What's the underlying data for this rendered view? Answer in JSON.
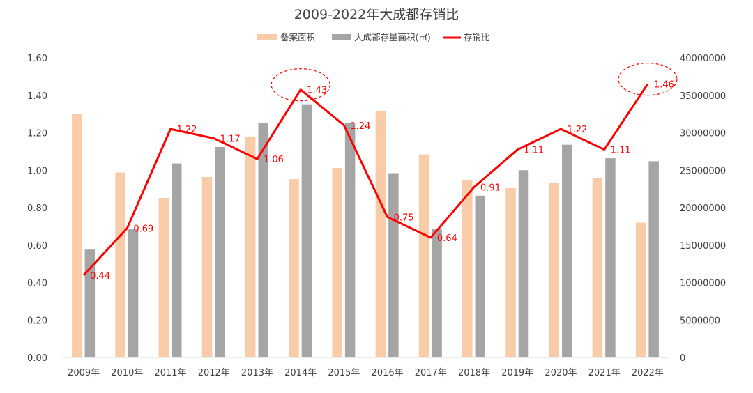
{
  "chart_data": {
    "type": "bar+line",
    "title": "2009-2022年大成都存销比",
    "legend": {
      "position": "top-center",
      "items": [
        {
          "name": "备案面积",
          "kind": "bar",
          "color": "#f8cba9"
        },
        {
          "name": "大成都存量面积(㎡)",
          "kind": "bar",
          "color": "#a5a5a5"
        },
        {
          "name": "存销比",
          "kind": "line",
          "color": "#ff0000"
        }
      ]
    },
    "categories": [
      "2009年",
      "2010年",
      "2011年",
      "2012年",
      "2013年",
      "2014年",
      "2015年",
      "2016年",
      "2017年",
      "2018年",
      "2019年",
      "2020年",
      "2021年",
      "2022年"
    ],
    "series": [
      {
        "name": "备案面积",
        "type": "bar",
        "axis": "right",
        "color": "#f8cba9",
        "values": [
          32500000,
          24700000,
          21300000,
          24100000,
          29500000,
          23800000,
          25300000,
          32900000,
          27100000,
          23700000,
          22600000,
          23300000,
          24000000,
          18000000
        ]
      },
      {
        "name": "大成都存量面积(㎡)",
        "type": "bar",
        "axis": "right",
        "color": "#a5a5a5",
        "values": [
          14400000,
          17100000,
          25900000,
          28100000,
          31300000,
          33800000,
          31300000,
          24600000,
          17200000,
          21600000,
          25000000,
          28400000,
          26600000,
          26200000
        ]
      },
      {
        "name": "存销比",
        "type": "line",
        "axis": "left",
        "color": "#ff0000",
        "values": [
          0.44,
          0.69,
          1.22,
          1.17,
          1.06,
          1.43,
          1.24,
          0.75,
          0.64,
          0.91,
          1.11,
          1.22,
          1.11,
          1.46
        ],
        "labels": [
          "0.44",
          "0.69",
          "1.22",
          "1.17",
          "1.06",
          "1.43",
          "1.24",
          "0.75",
          "0.64",
          "0.91",
          "1.11",
          "1.22",
          "1.11",
          "1.46"
        ]
      }
    ],
    "y_left": {
      "min": 0,
      "max": 1.6,
      "step": 0.2,
      "ticks": [
        "0.00",
        "0.20",
        "0.40",
        "0.60",
        "0.80",
        "1.00",
        "1.20",
        "1.40",
        "1.60"
      ]
    },
    "y_right": {
      "min": 0,
      "max": 40000000,
      "step": 5000000,
      "ticks": [
        "0",
        "5000000",
        "10000000",
        "15000000",
        "20000000",
        "25000000",
        "30000000",
        "35000000",
        "40000000"
      ]
    },
    "highlights": [
      "2014年",
      "2022年"
    ],
    "grid": false
  }
}
